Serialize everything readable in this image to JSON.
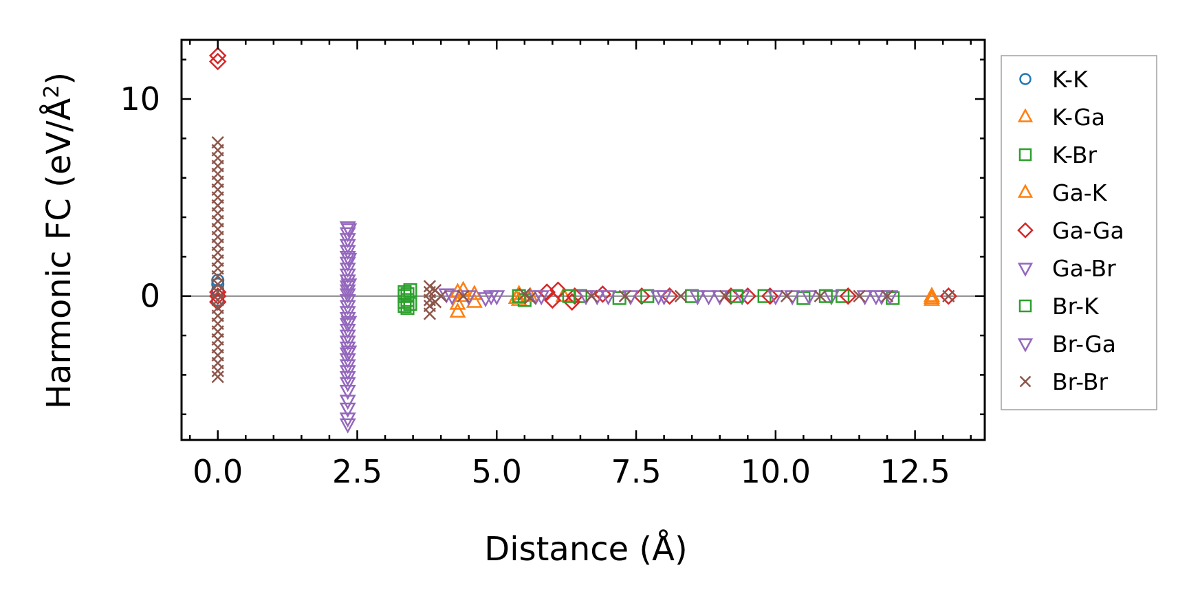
{
  "chart_data": {
    "type": "scatter",
    "title": "",
    "xlabel": "Distance (Å)",
    "ylabel_main": "Harmonic FC (eV/Å",
    "ylabel_sup": "2",
    "ylabel_close": ")",
    "xlim": [
      -0.65,
      13.75
    ],
    "ylim": [
      -7.3,
      13.0
    ],
    "xticks": [
      0,
      2.5,
      5,
      7.5,
      10,
      12.5
    ],
    "xtick_labels": [
      "0.0",
      "2.5",
      "5.0",
      "7.5",
      "10.0",
      "12.5"
    ],
    "yticks": [
      0,
      10
    ],
    "ytick_labels": [
      "0",
      "10"
    ],
    "grid": false,
    "legend_position": "outside-right",
    "zero_line": true,
    "series": [
      {
        "name": "K-K",
        "marker": "circle",
        "color": "#1f77b4",
        "points": [
          [
            0,
            0.8
          ],
          [
            0,
            0.3
          ],
          [
            0,
            -0.2
          ],
          [
            0,
            0.6
          ]
        ]
      },
      {
        "name": "K-Ga",
        "marker": "triangle-up",
        "color": "#ff7f0e",
        "points": [
          [
            4.3,
            0.2
          ],
          [
            4.3,
            -0.4
          ],
          [
            4.3,
            -0.8
          ],
          [
            4.6,
            0.1
          ],
          [
            4.6,
            -0.3
          ],
          [
            5.4,
            0.1
          ],
          [
            5.4,
            -0.2
          ],
          [
            12.8,
            0.0
          ],
          [
            12.8,
            -0.2
          ]
        ]
      },
      {
        "name": "K-Br",
        "marker": "square",
        "color": "#2ca02c",
        "points": [
          [
            3.35,
            0.0
          ],
          [
            3.35,
            -0.3
          ],
          [
            3.35,
            -0.5
          ],
          [
            3.35,
            0.2
          ],
          [
            3.45,
            0.3
          ],
          [
            3.45,
            -0.4
          ],
          [
            5.5,
            -0.2
          ],
          [
            6.5,
            0.0
          ],
          [
            7.2,
            -0.1
          ],
          [
            8.5,
            0.0
          ],
          [
            9.8,
            0.0
          ],
          [
            10.5,
            -0.1
          ],
          [
            11.2,
            0.0
          ],
          [
            12.1,
            -0.1
          ]
        ]
      },
      {
        "name": "Ga-K",
        "marker": "triangle-up",
        "color": "#ff7f0e",
        "points": [
          [
            4.35,
            0.0
          ],
          [
            4.4,
            0.3
          ],
          [
            5.35,
            -0.1
          ],
          [
            5.6,
            0.0
          ],
          [
            6.2,
            0.0
          ],
          [
            12.8,
            -0.1
          ]
        ]
      },
      {
        "name": "Ga-Ga",
        "marker": "diamond",
        "color": "#d62728",
        "points": [
          [
            0,
            12.2
          ],
          [
            0,
            11.9
          ],
          [
            0,
            0.2
          ],
          [
            0,
            0.0
          ],
          [
            0,
            -0.3
          ],
          [
            5.9,
            0.2
          ],
          [
            6.0,
            -0.2
          ],
          [
            6.1,
            0.3
          ],
          [
            6.35,
            -0.3
          ],
          [
            6.4,
            0.0
          ],
          [
            6.9,
            0.1
          ],
          [
            7.6,
            0.0
          ],
          [
            8.1,
            0.0
          ],
          [
            9.2,
            0.0
          ],
          [
            9.5,
            0.0
          ],
          [
            9.9,
            0.0
          ],
          [
            11.3,
            0.0
          ],
          [
            13.1,
            0.0
          ]
        ]
      },
      {
        "name": "Ga-Br",
        "marker": "triangle-down",
        "color": "#9467bd",
        "points": [
          [
            2.33,
            3.5
          ],
          [
            2.33,
            3.2
          ],
          [
            2.33,
            2.9
          ],
          [
            2.33,
            2.6
          ],
          [
            2.33,
            2.3
          ],
          [
            2.33,
            2.0
          ],
          [
            2.33,
            1.7
          ],
          [
            2.33,
            1.4
          ],
          [
            2.33,
            1.1
          ],
          [
            2.33,
            0.8
          ],
          [
            2.33,
            0.5
          ],
          [
            2.33,
            0.3
          ],
          [
            2.33,
            0.1
          ],
          [
            2.33,
            -0.2
          ],
          [
            2.33,
            -0.5
          ],
          [
            2.33,
            -0.8
          ],
          [
            2.33,
            -1.1
          ],
          [
            2.33,
            -1.4
          ],
          [
            2.33,
            -1.7
          ],
          [
            2.33,
            -2.0
          ],
          [
            2.33,
            -2.3
          ],
          [
            2.33,
            -2.6
          ],
          [
            2.33,
            -2.9
          ],
          [
            2.33,
            -3.2
          ],
          [
            2.33,
            -3.5
          ],
          [
            2.33,
            -3.8
          ],
          [
            2.33,
            -4.1
          ],
          [
            2.33,
            -4.4
          ],
          [
            2.33,
            -4.8
          ],
          [
            2.33,
            -5.3
          ],
          [
            2.33,
            -5.7
          ],
          [
            2.33,
            -6.2
          ],
          [
            2.33,
            -6.5
          ],
          [
            4.1,
            0.1
          ],
          [
            4.5,
            0.0
          ],
          [
            4.8,
            -0.1
          ],
          [
            5.0,
            0.0
          ],
          [
            5.8,
            0.0
          ],
          [
            6.6,
            0.0
          ],
          [
            7.0,
            0.0
          ],
          [
            7.4,
            0.0
          ],
          [
            8.0,
            0.0
          ],
          [
            8.6,
            0.0
          ],
          [
            9.0,
            0.0
          ],
          [
            9.4,
            0.0
          ],
          [
            10.0,
            0.0
          ],
          [
            10.6,
            0.0
          ],
          [
            11.0,
            0.0
          ],
          [
            11.6,
            0.0
          ],
          [
            11.9,
            0.0
          ],
          [
            12.05,
            0.0
          ]
        ]
      },
      {
        "name": "Br-K",
        "marker": "square",
        "color": "#2ca02c",
        "points": [
          [
            3.4,
            0.1
          ],
          [
            3.4,
            -0.2
          ],
          [
            3.4,
            -0.6
          ],
          [
            5.4,
            0.0
          ],
          [
            6.3,
            0.0
          ],
          [
            7.7,
            0.0
          ],
          [
            9.3,
            0.0
          ],
          [
            10.9,
            0.0
          ]
        ]
      },
      {
        "name": "Br-Ga",
        "marker": "triangle-down",
        "color": "#9467bd",
        "points": [
          [
            2.35,
            3.4
          ],
          [
            2.35,
            1.9
          ],
          [
            2.35,
            0.6
          ],
          [
            2.35,
            -1.3
          ],
          [
            2.35,
            -2.8
          ],
          [
            4.2,
            0.0
          ],
          [
            4.9,
            0.0
          ],
          [
            5.7,
            0.0
          ],
          [
            6.8,
            0.0
          ],
          [
            7.9,
            0.0
          ],
          [
            8.8,
            0.0
          ],
          [
            10.3,
            0.0
          ],
          [
            11.8,
            0.0
          ]
        ]
      },
      {
        "name": "Br-Br",
        "marker": "x",
        "color": "#8c564b",
        "points": [
          [
            0,
            7.8
          ],
          [
            0,
            7.4
          ],
          [
            0,
            7.0
          ],
          [
            0,
            6.6
          ],
          [
            0,
            6.2
          ],
          [
            0,
            5.8
          ],
          [
            0,
            5.4
          ],
          [
            0,
            5.0
          ],
          [
            0,
            4.6
          ],
          [
            0,
            4.2
          ],
          [
            0,
            3.8
          ],
          [
            0,
            3.4
          ],
          [
            0,
            3.0
          ],
          [
            0,
            2.6
          ],
          [
            0,
            2.2
          ],
          [
            0,
            1.8
          ],
          [
            0,
            1.4
          ],
          [
            0,
            1.0
          ],
          [
            0,
            0.6
          ],
          [
            0,
            0.2
          ],
          [
            0,
            -0.2
          ],
          [
            0,
            -0.6
          ],
          [
            0,
            -1.0
          ],
          [
            0,
            -1.4
          ],
          [
            0,
            -1.8
          ],
          [
            0,
            -2.2
          ],
          [
            0,
            -2.6
          ],
          [
            0,
            -3.0
          ],
          [
            0,
            -3.4
          ],
          [
            0,
            -3.8
          ],
          [
            0,
            -4.1
          ],
          [
            3.8,
            0.5
          ],
          [
            3.8,
            0.2
          ],
          [
            3.8,
            -0.2
          ],
          [
            3.8,
            -0.5
          ],
          [
            3.8,
            -0.9
          ],
          [
            3.9,
            0.3
          ],
          [
            3.9,
            -0.3
          ],
          [
            4.0,
            0.0
          ],
          [
            4.4,
            0.0
          ],
          [
            5.5,
            0.1
          ],
          [
            5.6,
            -0.1
          ],
          [
            6.7,
            0.0
          ],
          [
            7.3,
            0.0
          ],
          [
            8.3,
            0.0
          ],
          [
            9.1,
            0.0
          ],
          [
            10.2,
            0.0
          ],
          [
            10.8,
            0.0
          ],
          [
            11.5,
            0.0
          ],
          [
            12.0,
            0.0
          ],
          [
            13.1,
            0.0
          ]
        ]
      }
    ]
  }
}
